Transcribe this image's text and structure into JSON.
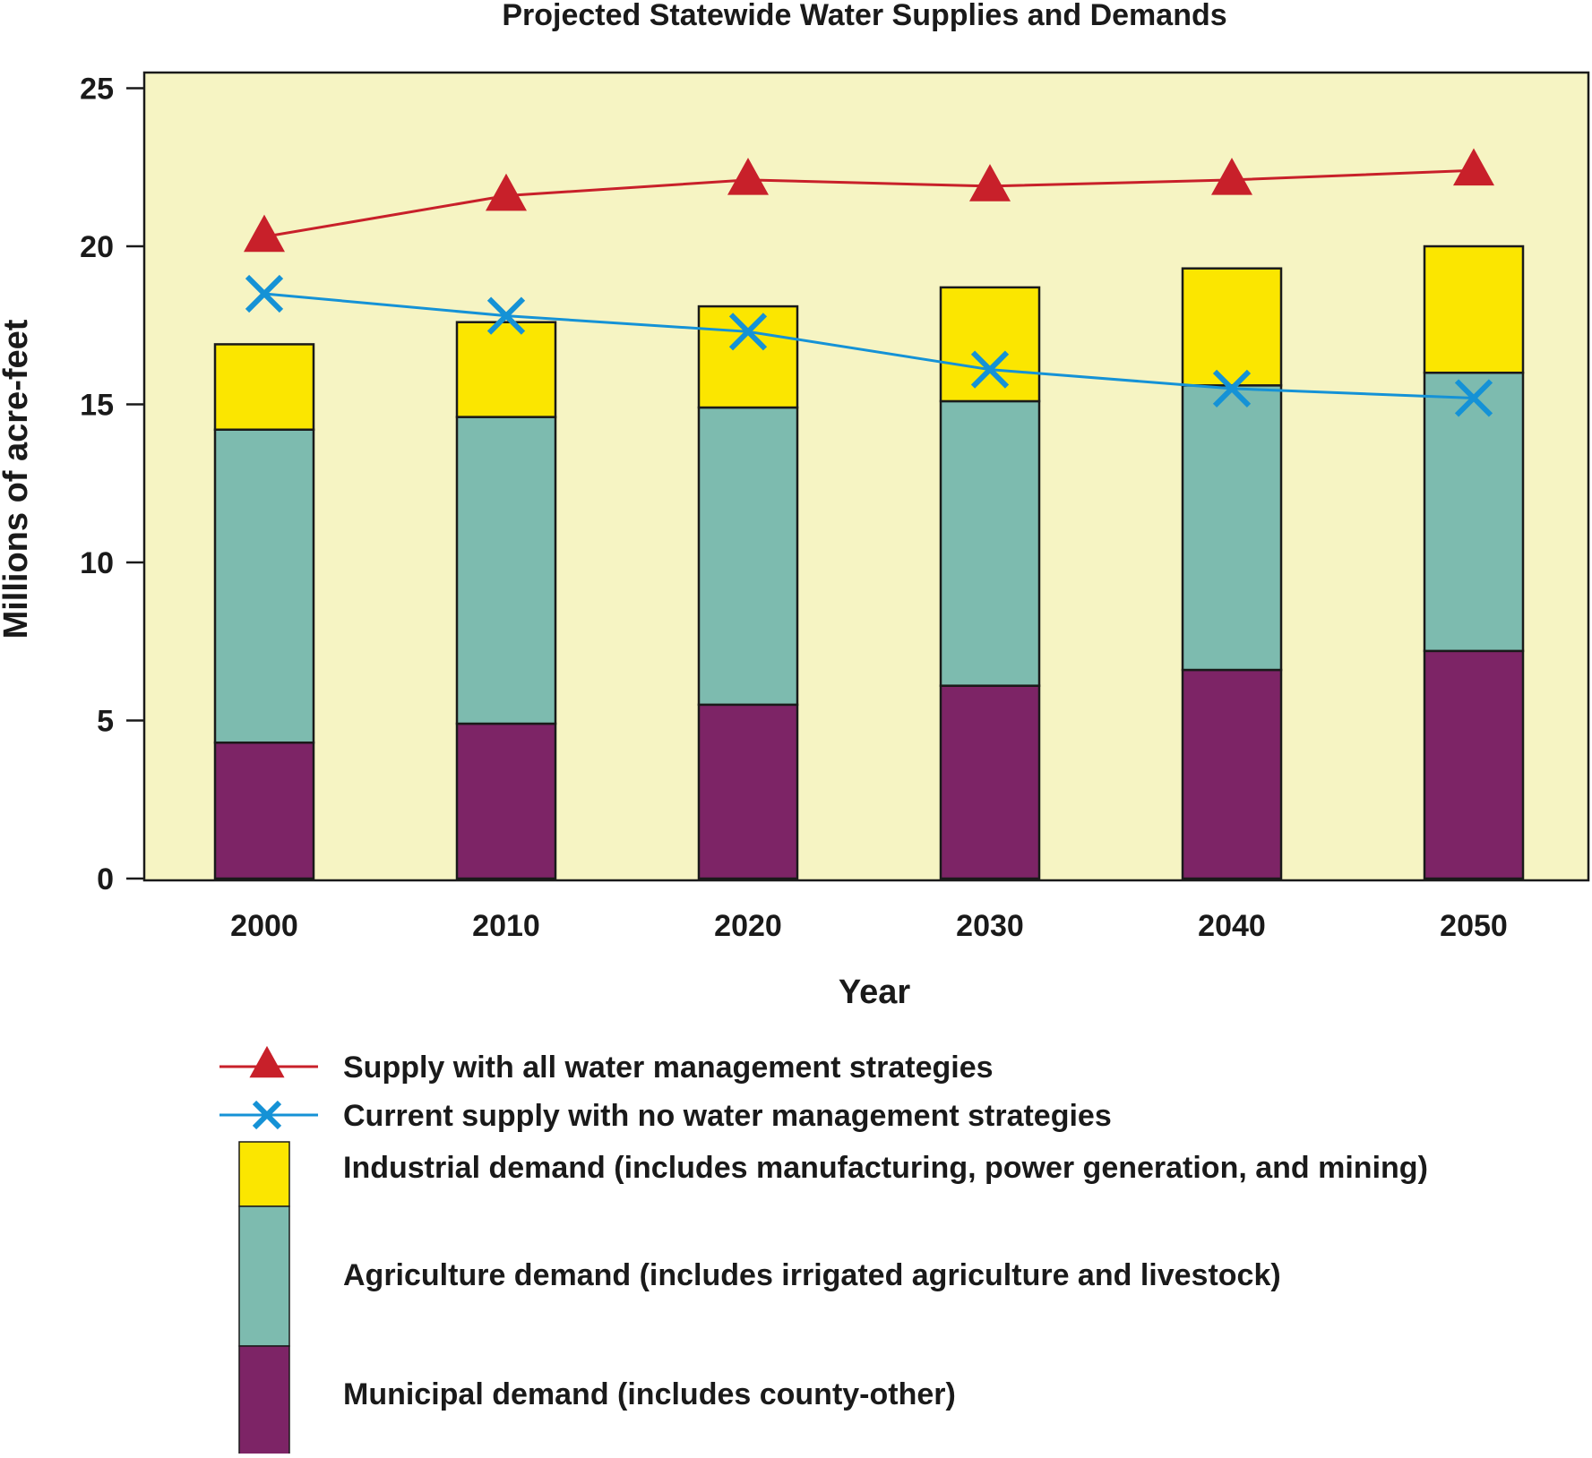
{
  "chart_data": {
    "type": "bar",
    "title": "Projected Statewide Water Supplies and Demands",
    "xlabel": "Year",
    "ylabel": "Millions of acre-feet",
    "ylim": [
      0,
      25
    ],
    "yticks": [
      0,
      5,
      10,
      15,
      20,
      25
    ],
    "categories": [
      "2000",
      "2010",
      "2020",
      "2030",
      "2040",
      "2050"
    ],
    "stacked": true,
    "grid": false,
    "legend_position": "bottom",
    "series": [
      {
        "name": "Municipal demand (includes county-other)",
        "kind": "bar",
        "color": "#7d2466",
        "values": [
          4.3,
          4.9,
          5.5,
          6.1,
          6.6,
          7.2
        ]
      },
      {
        "name": "Agriculture demand (includes irrigated agriculture and livestock)",
        "kind": "bar",
        "color": "#7dbbaf",
        "values": [
          9.9,
          9.7,
          9.4,
          9.0,
          9.0,
          8.8
        ]
      },
      {
        "name": "Industrial demand (includes manufacturing, power generation, and mining)",
        "kind": "bar",
        "color": "#fbe600",
        "values": [
          2.7,
          3.0,
          3.2,
          3.6,
          3.7,
          4.0
        ]
      },
      {
        "name": "Supply with all water management strategies",
        "kind": "line",
        "marker": "triangle",
        "color": "#c8202a",
        "values": [
          20.3,
          21.6,
          22.1,
          21.9,
          22.1,
          22.4
        ]
      },
      {
        "name": "Current supply with no water management strategies",
        "kind": "line",
        "marker": "x",
        "color": "#1592d6",
        "values": [
          18.5,
          17.8,
          17.3,
          16.1,
          15.5,
          15.2
        ]
      }
    ],
    "legend_order": [
      3,
      4,
      2,
      1,
      0
    ],
    "plot_background": "#f6f4c3"
  }
}
